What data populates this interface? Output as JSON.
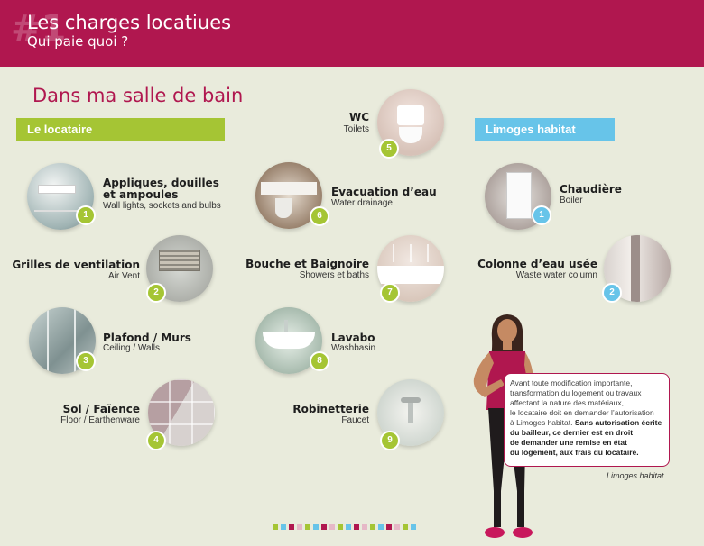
{
  "header": {
    "hash": "#1",
    "title": "Les charges locatiues",
    "subtitle": "Qui paie quoi ?"
  },
  "section": {
    "title": "Dans ma salle de bain"
  },
  "tags": {
    "tenant": "Le locataire",
    "landlord": "Limoges habitat"
  },
  "tenant_items": [
    {
      "num": "1",
      "title_line1": "Appliques, douilles",
      "title_line2": "et ampoules",
      "subtitle": "Wall lights, sockets and bulbs"
    },
    {
      "num": "2",
      "title": "Grilles de ventilation",
      "subtitle": "Air Vent"
    },
    {
      "num": "3",
      "title": "Plafond / Murs",
      "subtitle": "Ceiling / Walls"
    },
    {
      "num": "4",
      "title": "Sol / Faïence",
      "subtitle": "Floor / Earthenware"
    }
  ],
  "middle_items": [
    {
      "num": "5",
      "title": "WC",
      "subtitle": "Toilets"
    },
    {
      "num": "6",
      "title": "Evacuation d’eau",
      "subtitle": "Water drainage"
    },
    {
      "num": "7",
      "title": "Bouche et Baignoire",
      "subtitle": "Showers et baths"
    },
    {
      "num": "8",
      "title": "Lavabo",
      "subtitle": "Washbasin"
    },
    {
      "num": "9",
      "title": "Robinetterie",
      "subtitle": "Faucet"
    }
  ],
  "landlord_items": [
    {
      "num": "1",
      "title": "Chaudière",
      "subtitle": "Boiler"
    },
    {
      "num": "2",
      "title": "Colonne d’eau usée",
      "subtitle": "Waste water column"
    }
  ],
  "bubble": {
    "line1": "Avant toute modification importante,",
    "line2": "transformation du logement ou travaux",
    "line3": "affectant la nature des matériaux,",
    "line4": "le locataire doit en demander l’autorisation",
    "line5": "à Limoges habitat.",
    "bold1": "Sans autorisation écrite",
    "bold2": "du bailleur, ce dernier est en droit",
    "bold3": "de demander une remise en état",
    "bold4": "du logement, aux frais du locataire."
  },
  "credit": "Limoges habitat",
  "colors": {
    "brand": "#b0174f",
    "green": "#a5c534",
    "blue": "#67c4e9",
    "background": "#e9ebdc"
  }
}
